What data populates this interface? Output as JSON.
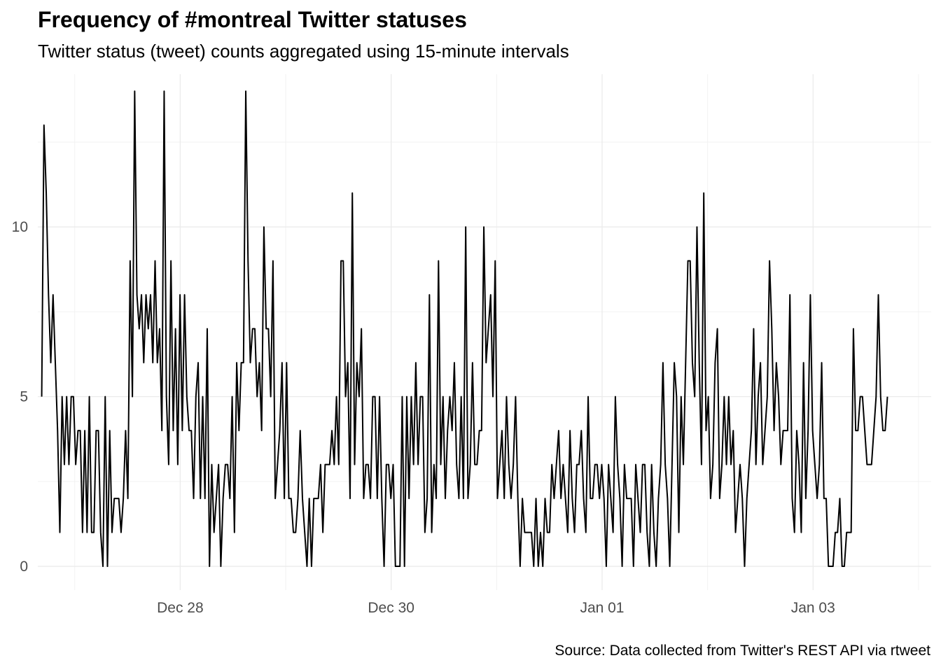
{
  "chart_data": {
    "type": "line",
    "title": "Frequency of #montreal Twitter statuses",
    "subtitle": "Twitter status (tweet) counts aggregated using 15-minute intervals",
    "caption": "Source: Data collected from Twitter's REST API via rtweet",
    "xlabel": "",
    "ylabel": "",
    "x_ticks": [
      "Dec 28",
      "Dec 30",
      "Jan 01",
      "Jan 03"
    ],
    "y_ticks": [
      "0",
      "5",
      "10"
    ],
    "ylim": [
      -0.7,
      14.5
    ],
    "xlim_days": [
      -1.35,
      7.12
    ],
    "x_tick_days": [
      0,
      2,
      4,
      6
    ],
    "grid": true,
    "legend": "none",
    "line_color": "#000000",
    "series": [
      {
        "values": [
          5,
          13,
          11,
          8,
          6,
          8,
          6,
          4,
          1,
          5,
          3,
          5,
          3,
          5,
          5,
          3,
          4,
          4,
          1,
          4,
          1,
          5,
          1,
          1,
          4,
          4,
          1,
          0,
          5,
          0,
          4,
          1,
          2,
          2,
          2,
          1,
          2,
          4,
          2,
          9,
          5,
          14,
          8,
          7,
          8,
          6,
          8,
          7,
          8,
          6,
          9,
          6,
          7,
          4,
          14,
          5,
          3,
          9,
          4,
          7,
          3,
          8,
          4,
          8,
          5,
          4,
          4,
          2,
          5,
          6,
          2,
          5,
          2,
          7,
          0,
          3,
          1,
          2,
          3,
          0,
          2,
          3,
          3,
          2,
          5,
          1,
          6,
          4,
          6,
          6,
          14,
          9,
          6,
          7,
          7,
          5,
          6,
          4,
          10,
          7,
          7,
          5,
          9,
          2,
          3,
          4,
          6,
          2,
          6,
          2,
          2,
          1,
          1,
          2,
          4,
          2,
          1,
          0,
          2,
          0,
          2,
          2,
          2,
          3,
          1,
          3,
          3,
          3,
          4,
          3,
          5,
          3,
          9,
          9,
          5,
          6,
          2,
          11,
          3,
          6,
          5,
          7,
          2,
          3,
          3,
          2,
          5,
          5,
          2,
          5,
          2,
          0,
          3,
          3,
          2,
          3,
          0,
          0,
          0,
          5,
          0,
          5,
          2,
          5,
          3,
          6,
          3,
          5,
          5,
          1,
          2,
          8,
          1,
          3,
          2,
          9,
          3,
          5,
          2,
          4,
          5,
          4,
          6,
          3,
          2,
          5,
          2,
          10,
          2,
          3,
          6,
          3,
          3,
          4,
          4,
          10,
          6,
          7,
          8,
          5,
          9,
          2,
          3,
          4,
          2,
          5,
          3,
          2,
          3,
          5,
          2,
          0,
          2,
          1,
          1,
          1,
          1,
          0,
          2,
          0,
          1,
          0,
          2,
          1,
          1,
          3,
          2,
          3,
          4,
          2,
          3,
          2,
          1,
          4,
          2,
          1,
          3,
          3,
          4,
          2,
          1,
          5,
          2,
          2,
          3,
          3,
          2,
          3,
          2,
          0,
          3,
          2,
          1,
          5,
          3,
          2,
          0,
          3,
          2,
          2,
          2,
          0,
          3,
          2,
          1,
          3,
          3,
          1,
          0,
          3,
          1,
          0,
          2,
          3,
          6,
          3,
          2,
          0,
          3,
          6,
          5,
          1,
          5,
          3,
          6,
          9,
          9,
          6,
          5,
          10,
          6,
          3,
          11,
          4,
          5,
          2,
          3,
          6,
          7,
          2,
          3,
          5,
          3,
          5,
          3,
          4,
          1,
          2,
          3,
          2,
          0,
          2,
          3,
          4,
          7,
          3,
          5,
          6,
          3,
          4,
          5,
          9,
          7,
          4,
          6,
          5,
          3,
          4,
          4,
          4,
          8,
          2,
          1,
          4,
          3,
          1,
          6,
          2,
          4,
          8,
          4,
          3,
          2,
          3,
          6,
          2,
          2,
          0,
          0,
          0,
          1,
          1,
          2,
          0,
          0,
          1,
          1,
          1,
          7,
          4,
          4,
          5,
          5,
          4,
          3,
          3,
          3,
          4,
          5,
          8,
          5,
          4,
          4,
          5
        ]
      }
    ]
  }
}
